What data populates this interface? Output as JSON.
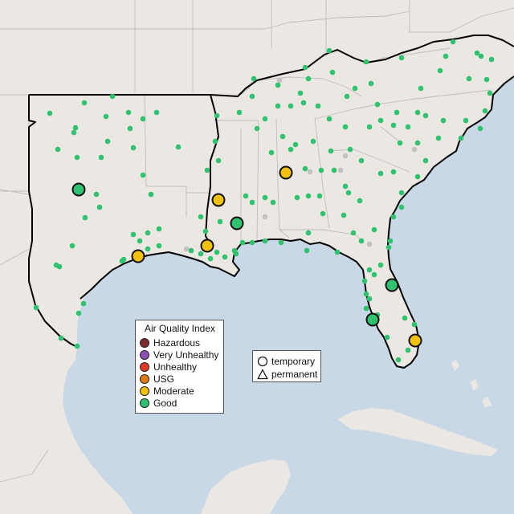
{
  "legend": {
    "title": "Air Quality Index",
    "items": [
      {
        "label": "Hazardous",
        "color": "#7e2a2a"
      },
      {
        "label": "Very Unhealthy",
        "color": "#8f4fb5"
      },
      {
        "label": "Unhealthy",
        "color": "#e03b2a"
      },
      {
        "label": "USG",
        "color": "#e07a12"
      },
      {
        "label": "Moderate",
        "color": "#f2c10e"
      },
      {
        "label": "Good",
        "color": "#2fc26f"
      }
    ]
  },
  "monitor_types": {
    "items": [
      {
        "label": "temporary",
        "icon": "circle-icon"
      },
      {
        "label": "permanent",
        "icon": "triangle-icon"
      }
    ]
  },
  "colors": {
    "water": "#c9d8e6",
    "land": "#ebe8e4",
    "region_outline": "#000000",
    "state_borders": "#bdbdbd",
    "no_data_marker": "#c2c2c2"
  }
}
